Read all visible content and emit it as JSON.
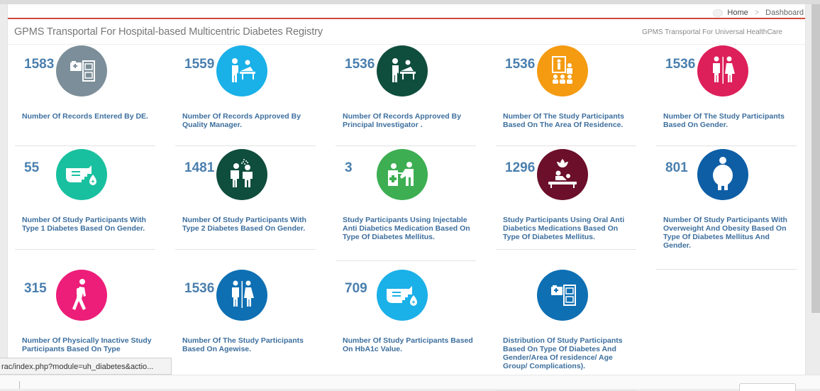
{
  "breadcrumb": {
    "home": "Home",
    "current": "Dashboard"
  },
  "header": {
    "title": "GPMS Transportal For Hospital-based Multicentric Diabetes Registry",
    "subtitle": "GPMS Transportal For Universal HealthCare"
  },
  "cards": [
    {
      "count": "1583",
      "label": "Number Of Records Entered By DE.",
      "color": "#7b8e99",
      "icon": "records-folder-icon"
    },
    {
      "count": "1559",
      "label": "Number Of Records Approved By Quality Manager.",
      "color": "#1ab0e8",
      "icon": "doctor-patient-icon"
    },
    {
      "count": "1536",
      "label": "Number Of Records Approved By Principal Investigator .",
      "color": "#0f4d3d",
      "icon": "doctor-patient-icon"
    },
    {
      "count": "1536",
      "label": "Number Of The Study Participants Based On The Area Of Residence.",
      "color": "#f49b12",
      "icon": "presentation-audience-icon"
    },
    {
      "count": "1536",
      "label": "Number Of The Study Participants Based On Gender.",
      "color": "#dd1f5a",
      "icon": "male-female-icon"
    },
    {
      "count": "55",
      "label": "Number Of Study Participants With Type 1 Diabetes Based On Gender.",
      "color": "#19c0a0",
      "icon": "glucose-test-hand-icon"
    },
    {
      "count": "1481",
      "label": "Number Of Study Participants With Type 2 Diabetes Based On Gender.",
      "color": "#0f4d3d",
      "icon": "sneezing-people-icon"
    },
    {
      "count": "3",
      "label": "Study Participants Using Injectable Anti Diabetics Medication Based On Type Of Diabetes Mellitus.",
      "color": "#3dae52",
      "icon": "injection-icon"
    },
    {
      "count": "1296",
      "label": "Study Participants Using Oral Anti Diabetics Medications Based On Type Of Diabetes Mellitus.",
      "color": "#6b0f2a",
      "icon": "massage-therapy-icon"
    },
    {
      "count": "801",
      "label": "Number Of Study Participants With Overweight And Obesity Based On Type Of Diabetes Mellitus And Gender.",
      "color": "#0e5ea6",
      "icon": "obese-person-icon"
    },
    {
      "count": "315",
      "label": "Number Of Physically Inactive Study Participants Based On Type",
      "color": "#ec1e79",
      "icon": "walking-person-icon"
    },
    {
      "count": "1536",
      "label": "Number Of The Study Participants Based On Agewise.",
      "color": "#0e6fb3",
      "icon": "male-female-icon"
    },
    {
      "count": "709",
      "label": "Number Of Study Participants Based On HbA1c Value.",
      "color": "#1ab0e8",
      "icon": "glucose-test-hand-icon"
    },
    {
      "count": "",
      "label": "Distribution Of Study Participants Based On Type Of Diabetes And Gender/Area Of residence/ Age Group/ Complications).",
      "color": "#0e6fb3",
      "icon": "records-folder-icon"
    }
  ],
  "statusbar": {
    "url": "rac/index.php?module=uh_diabetes&actio..."
  }
}
